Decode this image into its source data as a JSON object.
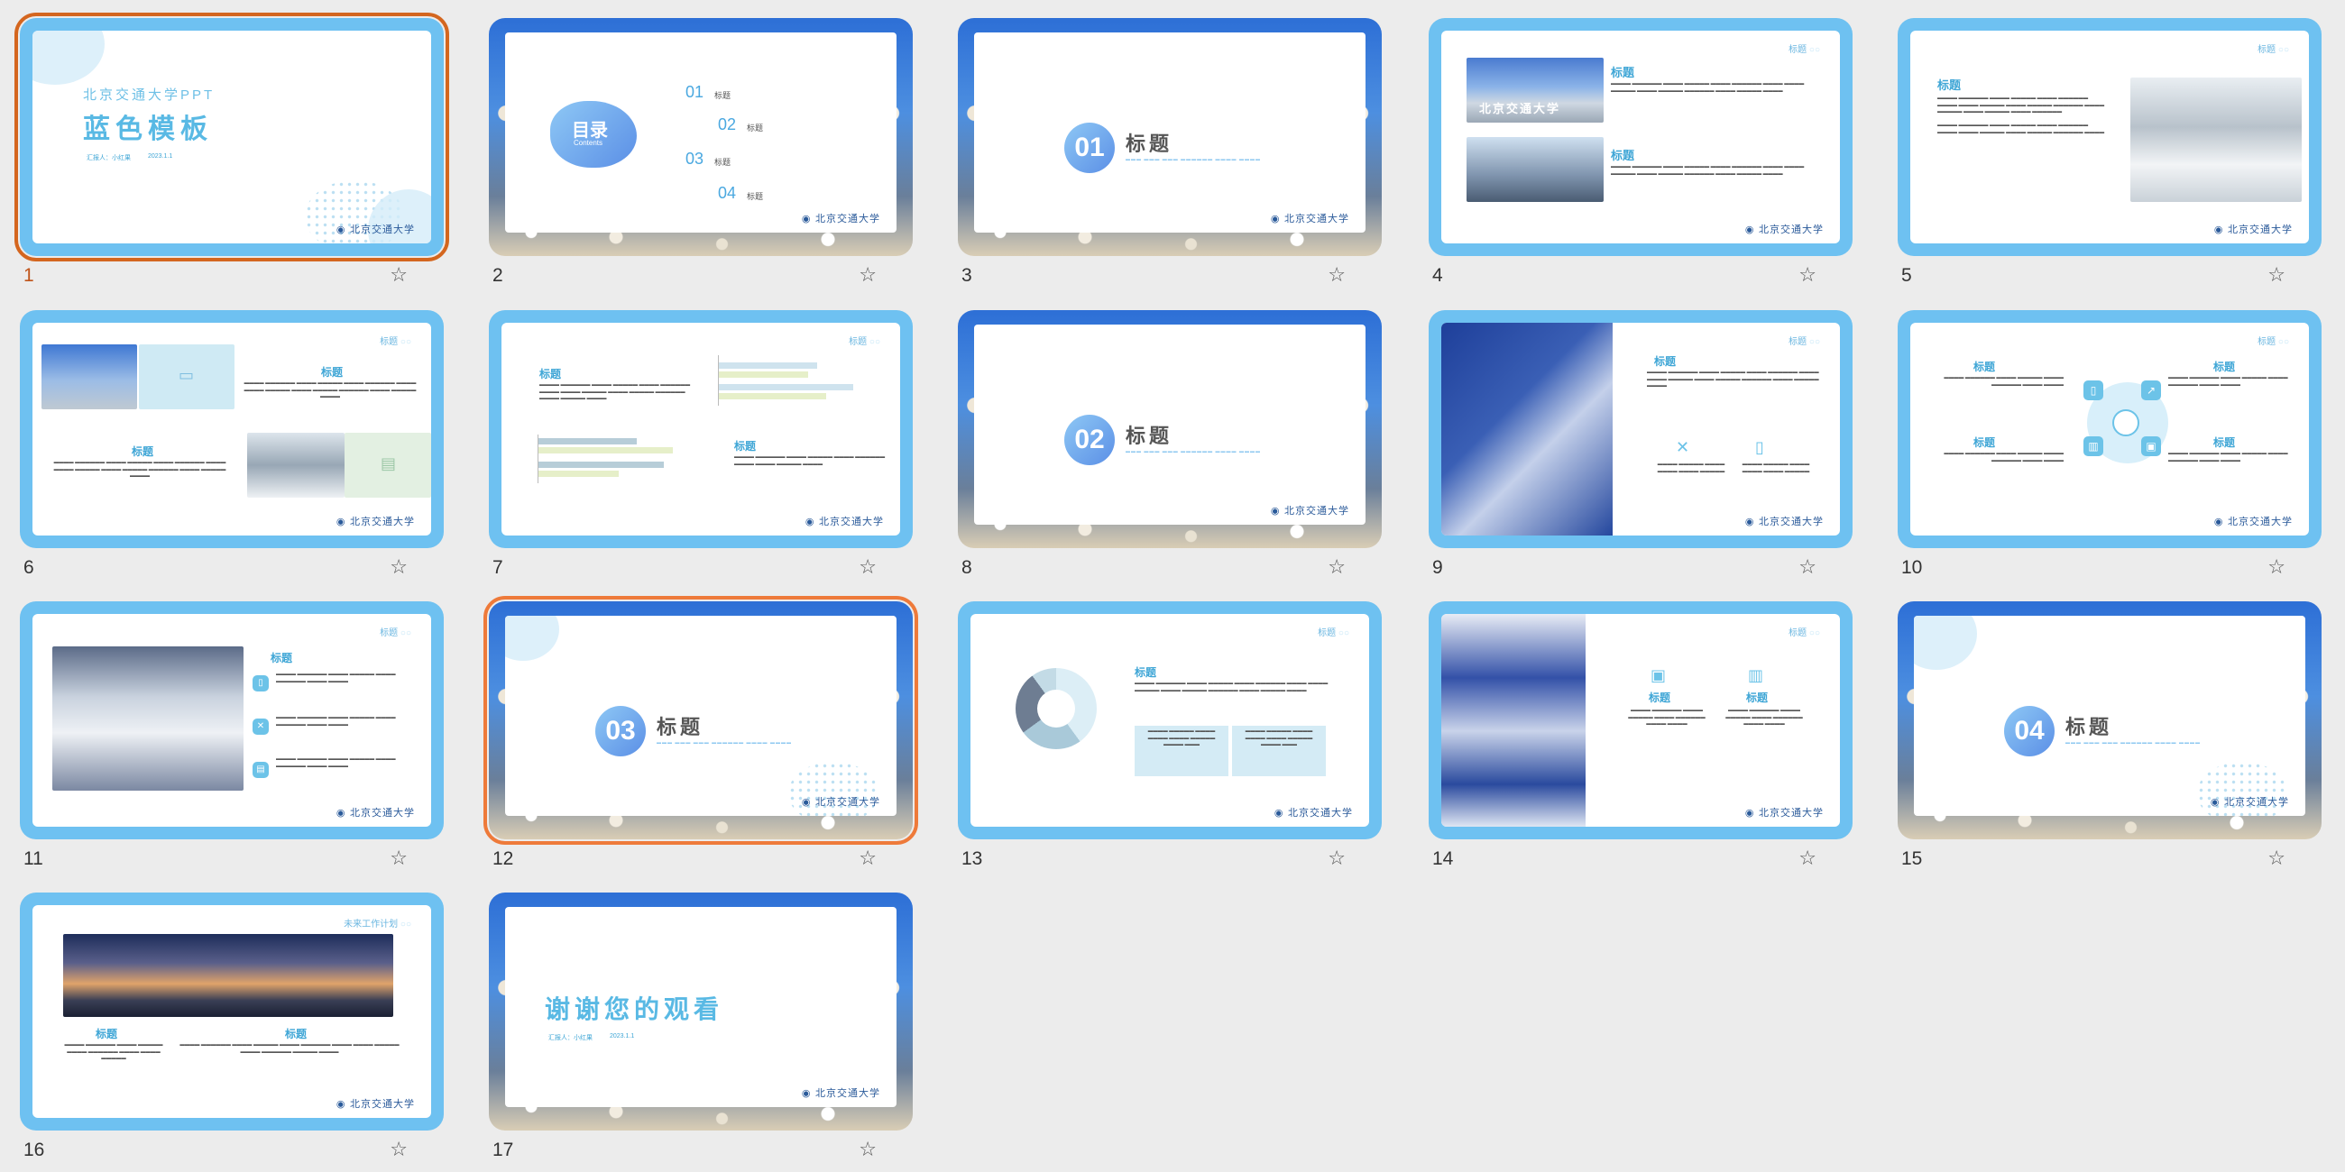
{
  "slides": [
    {
      "num": "1",
      "title": "北京交通大学PPT",
      "subtitle": "蓝色模板",
      "author": "汇报人：小红果",
      "date": "2023.1.1",
      "logo": "北京交通大学"
    },
    {
      "num": "2",
      "heading": "目录",
      "heading_en": "Contents",
      "items": [
        {
          "n": "01",
          "label": "标题"
        },
        {
          "n": "02",
          "label": "标题"
        },
        {
          "n": "03",
          "label": "标题"
        },
        {
          "n": "04",
          "label": "标题"
        }
      ],
      "logo": "北京交通大学"
    },
    {
      "num": "3",
      "section": "01",
      "title": "标题",
      "logo": "北京交通大学"
    },
    {
      "num": "4",
      "tag": "标题",
      "h1": "标题",
      "h2": "标题",
      "photo_text": "北京交通大学",
      "logo": "北京交通大学"
    },
    {
      "num": "5",
      "tag": "标题",
      "h1": "标题",
      "logo": "北京交通大学"
    },
    {
      "num": "6",
      "tag": "标题",
      "h1": "标题",
      "h2": "标题",
      "logo": "北京交通大学"
    },
    {
      "num": "7",
      "tag": "标题",
      "h1": "标题",
      "h2": "标题",
      "logo": "北京交通大学"
    },
    {
      "num": "8",
      "section": "02",
      "title": "标题",
      "logo": "北京交通大学"
    },
    {
      "num": "9",
      "tag": "标题",
      "h1": "标题",
      "logo": "北京交通大学"
    },
    {
      "num": "10",
      "tag": "标题",
      "h": [
        "标题",
        "标题",
        "标题",
        "标题"
      ],
      "logo": "北京交通大学"
    },
    {
      "num": "11",
      "tag": "标题",
      "h1": "标题",
      "logo": "北京交通大学"
    },
    {
      "num": "12",
      "section": "03",
      "title": "标题",
      "logo": "北京交通大学"
    },
    {
      "num": "13",
      "tag": "标题",
      "h1": "标题",
      "logo": "北京交通大学"
    },
    {
      "num": "14",
      "tag": "标题",
      "h": [
        "标题",
        "标题"
      ],
      "logo": "北京交通大学"
    },
    {
      "num": "15",
      "section": "04",
      "title": "标题",
      "logo": "北京交通大学"
    },
    {
      "num": "16",
      "tag": "未来工作计划",
      "h": [
        "标题",
        "标题"
      ],
      "logo": "北京交通大学"
    },
    {
      "num": "17",
      "title": "谢谢您的观看",
      "author": "汇报人：小红果",
      "date": "2023.1.1",
      "logo": "北京交通大学"
    }
  ],
  "body_text": "请开文福所里的工具，可以将缩进、连放、滤热量、大部分时间，它们都要开关所有的地方内容目。",
  "star_icon": "☆",
  "colors": {
    "accent": "#3fa6d6",
    "frame": "#6ec1f1",
    "selected": "#d4661f"
  }
}
